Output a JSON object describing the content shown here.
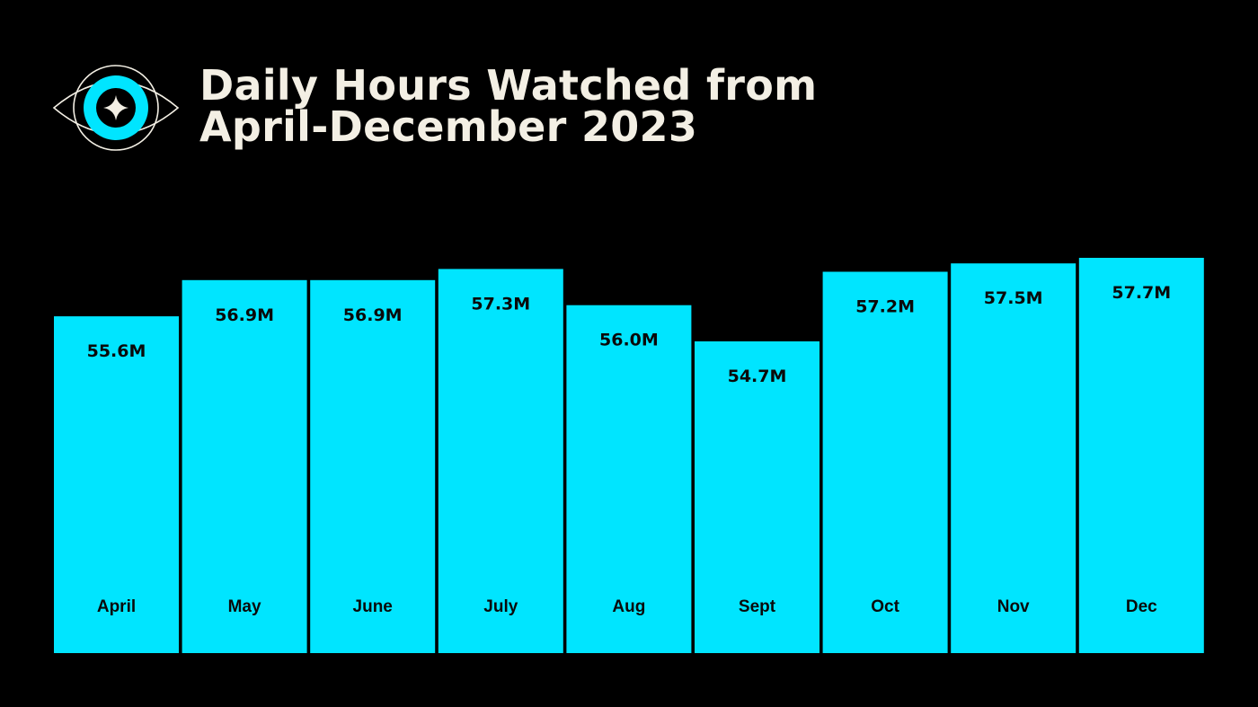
{
  "header": {
    "title_line1": "Daily Hours Watched from",
    "title_line2": "April-December 2023"
  },
  "colors": {
    "background": "#000000",
    "bar": "#00e5ff",
    "title_text": "#f3efe4",
    "label_text": "#0a0a0a"
  },
  "logo": {
    "icon": "eye-star-icon"
  },
  "chart_data": {
    "type": "bar",
    "title": "Daily Hours Watched from April-December 2023",
    "categories": [
      "April",
      "May",
      "June",
      "July",
      "Aug",
      "Sept",
      "Oct",
      "Nov",
      "Dec"
    ],
    "values": [
      55.6,
      56.9,
      56.9,
      57.3,
      56.0,
      54.7,
      57.2,
      57.5,
      57.7
    ],
    "value_labels": [
      "55.6M",
      "56.9M",
      "56.9M",
      "57.3M",
      "56.0M",
      "54.7M",
      "57.2M",
      "57.5M",
      "57.7M"
    ],
    "unit": "M",
    "xlabel": "",
    "ylabel": "",
    "grid": false,
    "legend": "none"
  }
}
